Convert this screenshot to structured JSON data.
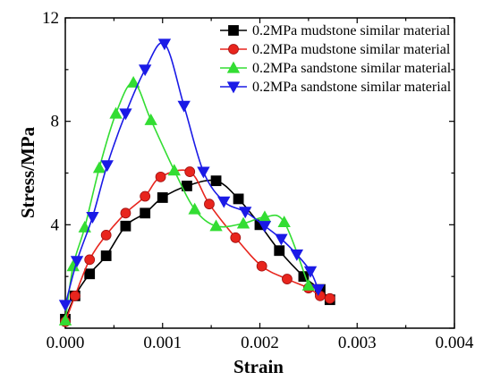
{
  "chart_data": {
    "type": "line",
    "title": "",
    "xlabel": "Strain",
    "ylabel": "Stress/MPa",
    "xlim": [
      0,
      0.004
    ],
    "ylim": [
      0,
      12
    ],
    "xticks": [
      "0.000",
      "0.001",
      "0.002",
      "0.003",
      "0.004"
    ],
    "yticks": [
      "4",
      "8",
      "12"
    ],
    "xtick_values": [
      0,
      0.001,
      0.002,
      0.003,
      0.004
    ],
    "ytick_values": [
      4,
      8,
      12
    ],
    "grid": false,
    "legend_position": "top-right",
    "series": [
      {
        "name": "0.2MPa mudstone similar material",
        "color": "#000000",
        "marker": "square",
        "x": [
          0.0,
          0.0001,
          0.00025,
          0.00042,
          0.00062,
          0.00082,
          0.001,
          0.00125,
          0.00155,
          0.00178,
          0.002,
          0.0022,
          0.00245,
          0.00262,
          0.00272
        ],
        "y": [
          0.35,
          1.25,
          2.1,
          2.8,
          3.95,
          4.45,
          5.05,
          5.5,
          5.7,
          5.0,
          4.0,
          3.0,
          2.0,
          1.5,
          1.1
        ]
      },
      {
        "name": "0.2MPa mudstone similar material",
        "color": "#e8251d",
        "marker": "circle",
        "x": [
          0.0,
          0.0001,
          0.00025,
          0.00042,
          0.00062,
          0.00082,
          0.00098,
          0.00128,
          0.00148,
          0.00175,
          0.00202,
          0.00228,
          0.0025,
          0.00262,
          0.00272
        ],
        "y": [
          0.25,
          1.25,
          2.65,
          3.6,
          4.45,
          5.1,
          5.85,
          6.05,
          4.8,
          3.5,
          2.4,
          1.9,
          1.55,
          1.25,
          1.15
        ]
      },
      {
        "name": "0.2MPa sandstone similar material",
        "color": "#33dd33",
        "marker": "triangle-up",
        "x": [
          0.0,
          8e-05,
          0.0002,
          0.00035,
          0.00052,
          0.0007,
          0.00088,
          0.00112,
          0.00133,
          0.00155,
          0.00183,
          0.00205,
          0.00225,
          0.0025
        ],
        "y": [
          0.3,
          2.4,
          3.9,
          6.2,
          8.3,
          9.5,
          8.05,
          6.1,
          4.6,
          3.95,
          4.05,
          4.3,
          4.1,
          1.65
        ]
      },
      {
        "name": "0.2MPa sandstone similar material",
        "color": "#1a1ae6",
        "marker": "triangle-down",
        "x": [
          0.0,
          0.00012,
          0.00028,
          0.00043,
          0.00062,
          0.00082,
          0.00102,
          0.00122,
          0.00142,
          0.00163,
          0.00185,
          0.00205,
          0.00222,
          0.00238,
          0.00252,
          0.0026
        ],
        "y": [
          0.9,
          2.6,
          4.3,
          6.3,
          8.3,
          10.0,
          11.0,
          8.6,
          6.05,
          4.9,
          4.5,
          3.95,
          3.45,
          2.85,
          2.2,
          1.5
        ]
      }
    ]
  }
}
